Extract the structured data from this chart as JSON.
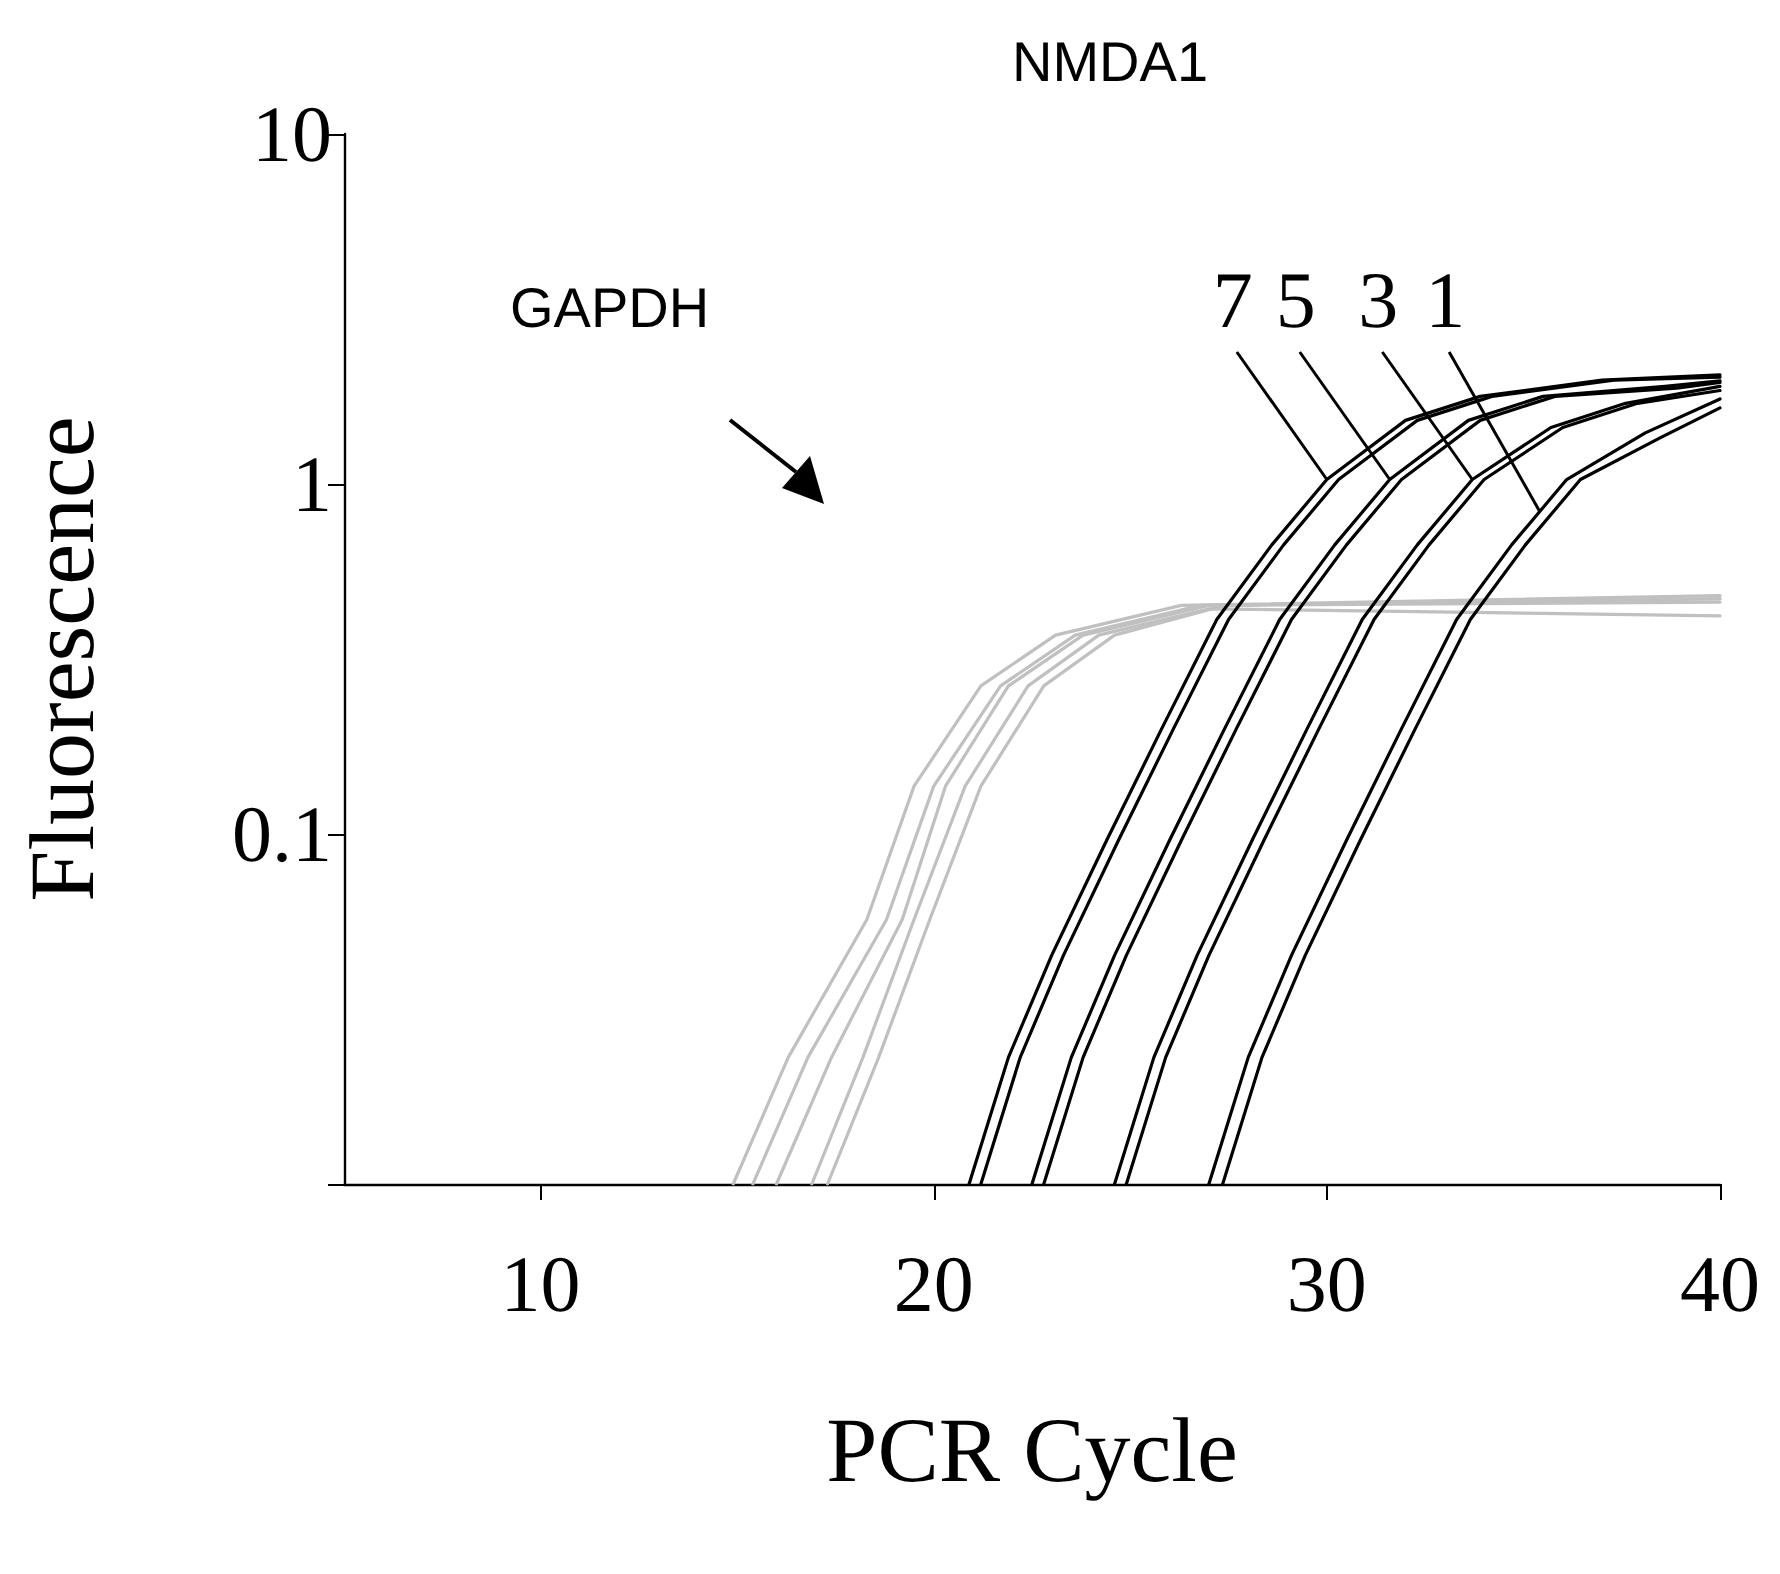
{
  "chart_data": {
    "type": "line",
    "title": "NMDA1",
    "xlabel": "PCR Cycle",
    "ylabel": "Fluorescence",
    "log": "y",
    "grid": false,
    "marker": "none",
    "line_style": "solid",
    "xlim": [
      5,
      40
    ],
    "xticks": [
      10,
      20,
      30,
      40
    ],
    "ylim": [
      0.01,
      10
    ],
    "yticks": [
      {
        "value": 0.01,
        "label": null
      },
      0.1,
      1,
      10
    ],
    "annotations": [
      "GAPDH",
      {
        "text": "7",
        "x": 30.0,
        "y": 1.03
      },
      {
        "text": "5",
        "x": 31.6,
        "y": 1.03
      },
      {
        "text": "3",
        "x": 33.7,
        "y": 1.03
      },
      {
        "text": "1",
        "x": 35.4,
        "y": 0.84
      }
    ],
    "series": [
      {
        "color": "#c0c0c0",
        "x": [
          14.9,
          16.3,
          18.3,
          19.5,
          21.2,
          23.1,
          26.3,
          40
        ],
        "values": [
          0.01,
          0.023,
          0.057,
          0.137,
          0.265,
          0.37,
          0.45,
          0.48
        ]
      },
      {
        "color": "#c0c0c0",
        "x": [
          15.4,
          16.8,
          18.8,
          20.0,
          21.7,
          23.6,
          26.8,
          40
        ],
        "values": [
          0.01,
          0.023,
          0.057,
          0.137,
          0.265,
          0.37,
          0.45,
          0.47
        ]
      },
      {
        "color": "#c0c0c0",
        "x": [
          16.0,
          17.4,
          19.2,
          20.3,
          21.9,
          23.8,
          27.0,
          40
        ],
        "values": [
          0.01,
          0.023,
          0.057,
          0.137,
          0.265,
          0.37,
          0.45,
          0.46
        ]
      },
      {
        "color": "#c0c0c0",
        "x": [
          16.9,
          18.2,
          19.5,
          20.8,
          22.4,
          24.2,
          27.0,
          40
        ],
        "values": [
          0.01,
          0.023,
          0.057,
          0.137,
          0.265,
          0.37,
          0.44,
          0.42
        ]
      },
      {
        "color": "#c0c0c0",
        "x": [
          17.3,
          18.6,
          19.9,
          21.2,
          22.8,
          24.6,
          27.4,
          40
        ],
        "values": [
          0.01,
          0.023,
          0.057,
          0.137,
          0.265,
          0.37,
          0.45,
          0.47
        ]
      },
      {
        "color": "#000000",
        "x": [
          20.9,
          21.9,
          23.0,
          24.4,
          25.8,
          27.2,
          28.6,
          30.0,
          32.0,
          33.9,
          37.0,
          40
        ],
        "values": [
          0.01,
          0.023,
          0.045,
          0.096,
          0.2,
          0.41,
          0.67,
          1.03,
          1.52,
          1.78,
          1.98,
          2.05
        ]
      },
      {
        "color": "#000000",
        "x": [
          21.2,
          22.2,
          23.3,
          24.7,
          26.1,
          27.5,
          28.9,
          30.3,
          32.3,
          34.2,
          37.3,
          40
        ],
        "values": [
          0.01,
          0.023,
          0.045,
          0.096,
          0.2,
          0.41,
          0.67,
          1.03,
          1.52,
          1.78,
          1.98,
          2.02
        ]
      },
      {
        "color": "#000000",
        "x": [
          22.5,
          23.5,
          24.6,
          26.0,
          27.4,
          28.8,
          30.2,
          31.6,
          33.6,
          35.5,
          38.6,
          40
        ],
        "values": [
          0.01,
          0.023,
          0.045,
          0.096,
          0.2,
          0.41,
          0.67,
          1.03,
          1.52,
          1.78,
          1.9,
          1.97
        ]
      },
      {
        "color": "#000000",
        "x": [
          22.8,
          23.8,
          24.9,
          26.3,
          27.7,
          29.1,
          30.5,
          31.9,
          33.9,
          35.8,
          38.9,
          40
        ],
        "values": [
          0.01,
          0.023,
          0.045,
          0.096,
          0.2,
          0.41,
          0.67,
          1.03,
          1.52,
          1.78,
          1.88,
          1.95
        ]
      },
      {
        "color": "#000000",
        "x": [
          24.6,
          25.6,
          26.7,
          28.1,
          29.5,
          30.9,
          32.3,
          33.7,
          35.7,
          37.6,
          40
        ],
        "values": [
          0.01,
          0.023,
          0.045,
          0.096,
          0.2,
          0.41,
          0.67,
          1.03,
          1.45,
          1.7,
          1.9
        ]
      },
      {
        "color": "#000000",
        "x": [
          24.9,
          25.9,
          27.0,
          28.4,
          29.8,
          31.2,
          32.6,
          34.0,
          36.0,
          37.9,
          40
        ],
        "values": [
          0.01,
          0.023,
          0.045,
          0.096,
          0.2,
          0.41,
          0.67,
          1.03,
          1.45,
          1.7,
          1.85
        ]
      },
      {
        "color": "#000000",
        "x": [
          27.0,
          28.0,
          29.1,
          30.5,
          31.9,
          33.3,
          34.7,
          36.1,
          38.1,
          40
        ],
        "values": [
          0.01,
          0.023,
          0.045,
          0.096,
          0.2,
          0.41,
          0.67,
          1.03,
          1.4,
          1.75
        ]
      },
      {
        "color": "#000000",
        "x": [
          27.35,
          28.35,
          29.45,
          30.85,
          32.25,
          33.65,
          35.05,
          36.45,
          38.45,
          40
        ],
        "values": [
          0.01,
          0.023,
          0.045,
          0.096,
          0.2,
          0.41,
          0.67,
          1.03,
          1.35,
          1.65
        ]
      }
    ]
  }
}
